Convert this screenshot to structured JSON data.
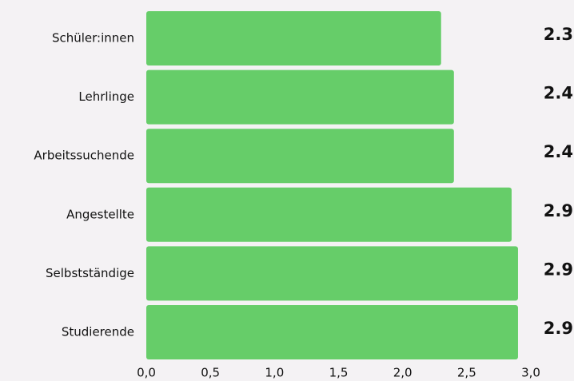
{
  "chart_data": {
    "type": "hbar",
    "categories": [
      "Schüler:innen",
      "Lehrlinge",
      "Arbeitssuchende",
      "Angestellte",
      "Selbstständige",
      "Studierende"
    ],
    "values": [
      2.3,
      2.4,
      2.4,
      2.85,
      2.9,
      2.9
    ],
    "value_labels": [
      "2.3",
      "2.4",
      "2.4",
      "2.9",
      "2.9",
      "2.9"
    ],
    "color": "#66cd69",
    "xlim": [
      0,
      3
    ],
    "xticks": [
      {
        "value": 0,
        "label": "0,0"
      },
      {
        "value": 0.5,
        "label": "0,5"
      },
      {
        "value": 1,
        "label": "1,0"
      },
      {
        "value": 1.5,
        "label": "1,5"
      },
      {
        "value": 2,
        "label": "2,0"
      },
      {
        "value": 2.5,
        "label": "2,5"
      },
      {
        "value": 3,
        "label": "3,0"
      }
    ]
  }
}
